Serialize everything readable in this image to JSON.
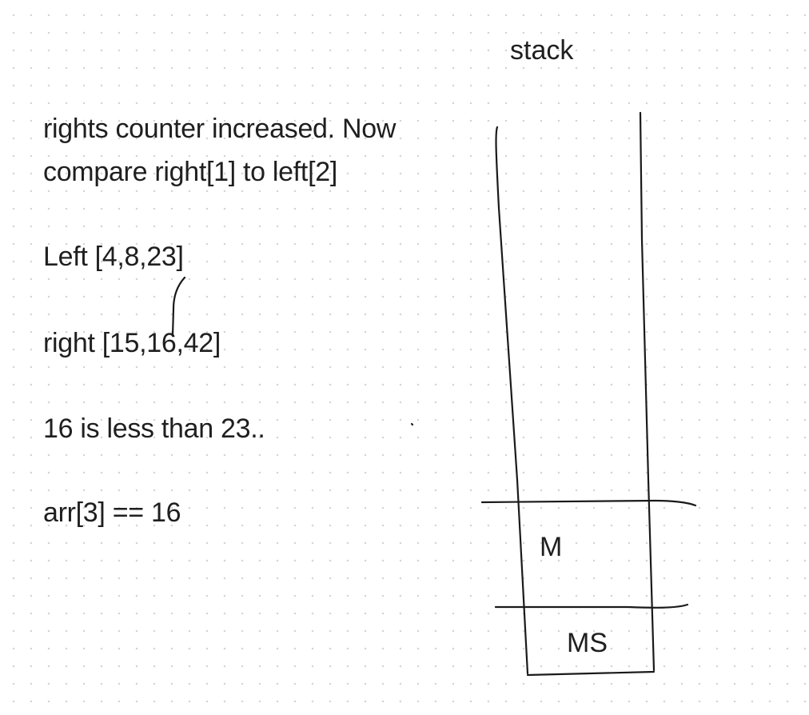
{
  "notes": {
    "line1a": "rights counter increased. Now",
    "line1b": "compare right[1] to left[2]",
    "left_array": "Left [4,8,23]",
    "right_array": "right [15,16,42]",
    "comparison": "16 is less than 23..",
    "assignment": "arr[3] == 16"
  },
  "stack": {
    "title": "stack",
    "cells": [
      "M",
      "MS"
    ]
  }
}
